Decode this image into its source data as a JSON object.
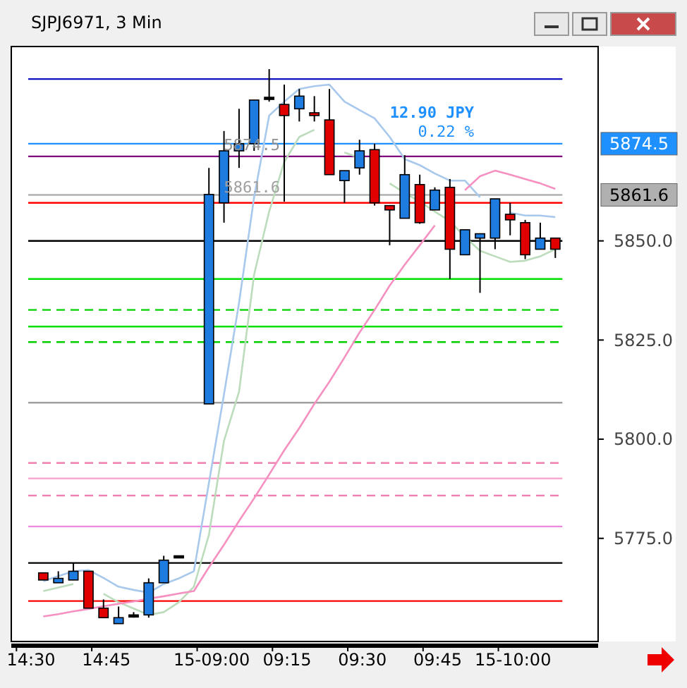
{
  "chart_data": {
    "type": "candlestick",
    "title": "SJPJ6971, 3 Min",
    "categories": [
      "14:30",
      null,
      null,
      null,
      null,
      "14:45",
      null,
      null,
      null,
      null,
      null,
      null,
      "15-09:00",
      null,
      null,
      null,
      null,
      "09:15",
      null,
      null,
      null,
      null,
      "09:30",
      null,
      null,
      null,
      null,
      "09:45",
      null,
      null,
      null,
      null,
      "15-10:00",
      null,
      null,
      null,
      null,
      null
    ],
    "series": [
      {
        "type": "line",
        "color": "#a8c8ec",
        "values": [
          null,
          5764.2,
          5765.5,
          5766.7,
          5767.0,
          5765.0,
          5762.8,
          5762.0,
          5761.3,
          5763.5,
          5764.9,
          5766.7,
          5789.0,
          5811.3,
          5834.4,
          5861.0,
          5881.6,
          5885.1,
          5888.3,
          5889.0,
          5889.4,
          5885.1,
          5883.0,
          5880.9,
          5876.2,
          5870.6,
          5869.1,
          5867.0,
          5865.2,
          5865.2,
          5861.0,
          null,
          5857.1,
          5856.4,
          5856.4,
          5856.0,
          null,
          null
        ]
      },
      {
        "type": "line",
        "color": "#bcdcbc",
        "values": [
          null,
          5761.7,
          5762.6,
          5763.5,
          null,
          5761.0,
          5758.9,
          5757.3,
          5755.7,
          5756.4,
          5758.9,
          5762.8,
          5775.9,
          5799.6,
          5812.0,
          5841.5,
          5857.4,
          5869.9,
          5876.2,
          5878.0,
          null,
          5872.3,
          5870.9,
          null,
          5864.5,
          5862.1,
          5859.9,
          5857.4,
          5855.0,
          5851.0,
          5847.5,
          5846.1,
          5844.7,
          5845.0,
          5846.1,
          5847.9,
          null,
          null
        ]
      },
      {
        "type": "line",
        "color": "#f590c0",
        "values": [
          null,
          5755.3,
          5755.9,
          5756.6,
          5757.2,
          5757.9,
          5758.5,
          5759.1,
          5759.8,
          5760.4,
          5761.1,
          5761.7,
          5767.7,
          5773.4,
          5779.4,
          5785.1,
          5791.1,
          5797.2,
          5802.8,
          5808.9,
          5814.5,
          5820.6,
          5826.9,
          5832.6,
          5838.7,
          5844.0,
          5848.9,
          5853.9,
          null,
          5862.8,
          5866.3,
          5867.7,
          5866.7,
          5865.6,
          5864.5,
          5863.1,
          null,
          null
        ]
      },
      {
        "ohlc": [
          null,
          [
            5766.3,
            5766.3,
            5764.5,
            5764.5
          ],
          [
            5763.8,
            5766.7,
            5763.8,
            5764.9
          ],
          [
            5764.5,
            5768.8,
            5764.5,
            5766.7
          ],
          [
            5766.7,
            5766.7,
            5757.4,
            5757.4
          ],
          [
            5757.4,
            5759.6,
            5755.0,
            5755.0
          ],
          [
            5753.5,
            5757.8,
            5753.5,
            5755.0
          ],
          [
            5755.7,
            5756.4,
            5755.0,
            5755.7
          ],
          [
            5755.7,
            5764.9,
            5755.0,
            5763.8
          ],
          [
            5763.8,
            5770.6,
            5763.8,
            5769.5
          ],
          [
            5770.6,
            5770.6,
            5770.6,
            5770.6
          ],
          null,
          [
            5808.9,
            5868.4,
            5808.9,
            5861.7
          ],
          [
            5859.6,
            5877.7,
            5854.6,
            5872.7
          ],
          [
            5872.7,
            5883.3,
            5868.4,
            5874.5
          ],
          [
            5874.5,
            5885.5,
            5872.7,
            5885.5
          ],
          [
            5886.2,
            5893.3,
            5885.1,
            5886.2
          ],
          [
            5884.4,
            5889.4,
            5859.9,
            5881.6
          ],
          [
            5883.3,
            5888.3,
            5880.1,
            5886.5
          ],
          [
            5882.3,
            5886.5,
            5880.1,
            5881.6
          ],
          [
            5880.5,
            5888.3,
            5866.7,
            5866.7
          ],
          [
            5865.2,
            5867.7,
            5859.6,
            5867.7
          ],
          [
            5868.4,
            5875.5,
            5866.7,
            5872.7
          ],
          [
            5873.0,
            5874.5,
            5858.9,
            5859.6
          ],
          [
            5858.9,
            5858.9,
            5848.9,
            5857.8
          ],
          [
            5855.7,
            5871.6,
            5855.7,
            5866.7
          ],
          [
            5864.2,
            5866.7,
            5854.3,
            5854.6
          ],
          [
            5857.8,
            5863.5,
            5857.8,
            5862.8
          ],
          [
            5863.5,
            5865.6,
            5840.4,
            5847.9
          ],
          [
            5846.5,
            5852.8,
            5846.5,
            5852.8
          ],
          [
            5850.7,
            5851.8,
            5836.9,
            5851.8
          ],
          [
            5850.7,
            5860.6,
            5847.9,
            5860.6
          ],
          [
            5856.7,
            5859.6,
            5851.4,
            5855.3
          ],
          [
            5854.6,
            5855.3,
            5845.4,
            5846.5
          ],
          [
            5847.9,
            5854.6,
            5847.9,
            5850.7
          ],
          [
            5850.7,
            5850.7,
            5845.7,
            5847.9
          ],
          null,
          null
        ],
        "colors": [
          null,
          "#e00000",
          "#1e7be0",
          "#1e7be0",
          "#e00000",
          "#e00000",
          "#1e7be0",
          "#000000",
          "#1e7be0",
          "#1e7be0",
          "#000000",
          null,
          "#1e7be0",
          "#1e7be0",
          "#1e7be0",
          "#1e7be0",
          "#000000",
          "#e00000",
          "#1e7be0",
          "#e00000",
          "#e00000",
          "#1e7be0",
          "#1e7be0",
          "#e00000",
          "#e00000",
          "#1e7be0",
          "#e00000",
          "#1e7be0",
          "#e00000",
          "#1e7be0",
          "#1e7be0",
          "#1e7be0",
          "#e00000",
          "#e00000",
          "#1e7be0",
          "#e00000",
          null,
          null
        ]
      }
    ],
    "ylim": [
      5749,
      5899
    ],
    "yticks": [
      {
        "value": 5775,
        "label": "5775.0"
      },
      {
        "value": 5800,
        "label": "5800.0"
      },
      {
        "value": 5825,
        "label": "5825.0"
      },
      {
        "value": 5850,
        "label": "5850.0"
      }
    ],
    "ref_lines": [
      {
        "axis": "y",
        "value": 5890.8,
        "color": "#1010c0"
      },
      {
        "axis": "y",
        "value": 5874.5,
        "label": "5874.5",
        "color": "#1e90ff"
      },
      {
        "axis": "y",
        "value": 5871.3,
        "color": "#800080"
      },
      {
        "axis": "y",
        "value": 5861.6,
        "label": "5861.6",
        "color": "#b0b0b0"
      },
      {
        "axis": "y",
        "value": 5859.6,
        "color": "#ff0000"
      },
      {
        "axis": "y",
        "value": 5850.0,
        "color": "#000000"
      },
      {
        "axis": "y",
        "value": 5840.4,
        "color": "#00e000"
      },
      {
        "axis": "y",
        "value": 5832.6,
        "color": "#00d000",
        "line_style": "dashed"
      },
      {
        "axis": "y",
        "value": 5828.4,
        "color": "#00e000"
      },
      {
        "axis": "y",
        "value": 5824.5,
        "color": "#00d000",
        "line_style": "dashed"
      },
      {
        "axis": "y",
        "value": 5809.2,
        "color": "#a0a0a0"
      },
      {
        "axis": "y",
        "value": 5794.0,
        "color": "#f080b0",
        "line_style": "dashed"
      },
      {
        "axis": "y",
        "value": 5790.1,
        "color": "#f8a8d0"
      },
      {
        "axis": "y",
        "value": 5785.8,
        "color": "#f080b0",
        "line_style": "dashed"
      },
      {
        "axis": "y",
        "value": 5778.0,
        "color": "#ee88dd"
      },
      {
        "axis": "y",
        "value": 5768.8,
        "color": "#000000"
      },
      {
        "axis": "y",
        "value": 5759.2,
        "color": "#ff0000"
      }
    ],
    "annotations": [
      "12.90 JPY",
      "0.22 %",
      "5874.5",
      "5861.6"
    ]
  }
}
